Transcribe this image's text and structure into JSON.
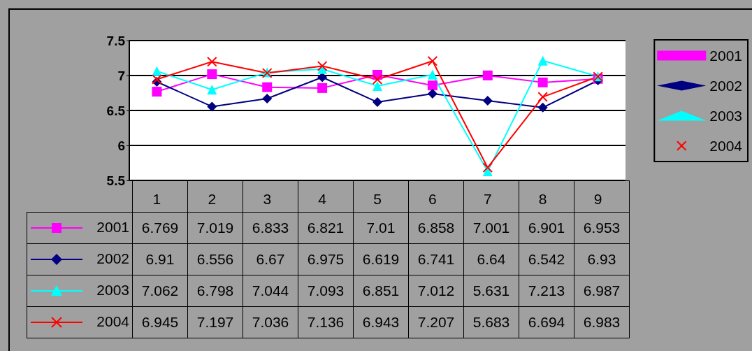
{
  "chart_data": {
    "type": "line",
    "categories": [
      "1",
      "2",
      "3",
      "4",
      "5",
      "6",
      "7",
      "8",
      "9"
    ],
    "series": [
      {
        "name": "2001",
        "color": "#ff00ff",
        "marker": "square",
        "values": [
          6.769,
          7.019,
          6.833,
          6.821,
          7.01,
          6.858,
          7.001,
          6.901,
          6.953
        ]
      },
      {
        "name": "2002",
        "color": "#000080",
        "marker": "diamond",
        "values": [
          6.91,
          6.556,
          6.67,
          6.975,
          6.619,
          6.741,
          6.64,
          6.542,
          6.93
        ]
      },
      {
        "name": "2003",
        "color": "#00ffff",
        "marker": "triangle",
        "values": [
          7.062,
          6.798,
          7.044,
          7.093,
          6.851,
          7.012,
          5.631,
          7.213,
          6.987
        ]
      },
      {
        "name": "2004",
        "color": "#ff0000",
        "marker": "cross",
        "values": [
          6.945,
          7.197,
          7.036,
          7.136,
          6.943,
          7.207,
          5.683,
          6.694,
          6.983
        ]
      }
    ],
    "ylim": [
      5.5,
      7.5
    ],
    "yticks": [
      5.5,
      6,
      6.5,
      7,
      7.5
    ],
    "grid": "y",
    "legend": "right",
    "data_labels": true,
    "line_style": "solid"
  }
}
